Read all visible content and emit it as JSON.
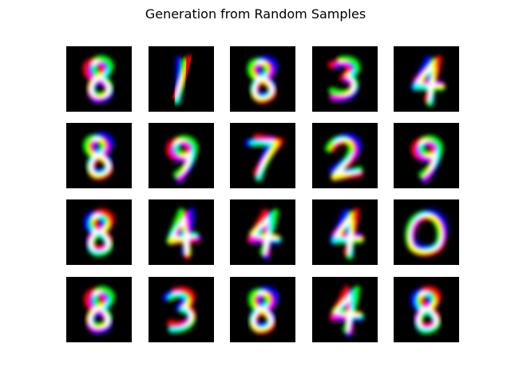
{
  "figure": {
    "title": "Generation from Random Samples"
  },
  "samples": [
    {
      "digit": "8"
    },
    {
      "digit": "1"
    },
    {
      "digit": "8"
    },
    {
      "digit": "3"
    },
    {
      "digit": "4"
    },
    {
      "digit": "8"
    },
    {
      "digit": "9"
    },
    {
      "digit": "7"
    },
    {
      "digit": "2"
    },
    {
      "digit": "9"
    },
    {
      "digit": "8"
    },
    {
      "digit": "4"
    },
    {
      "digit": "4"
    },
    {
      "digit": "4"
    },
    {
      "digit": "0"
    },
    {
      "digit": "8"
    },
    {
      "digit": "3"
    },
    {
      "digit": "8"
    },
    {
      "digit": "4"
    },
    {
      "digit": "8"
    }
  ],
  "colors": {
    "background": "#ffffff",
    "cell_background": "#000000",
    "channels": [
      "#ff0000",
      "#00ff00",
      "#0000ff"
    ]
  }
}
